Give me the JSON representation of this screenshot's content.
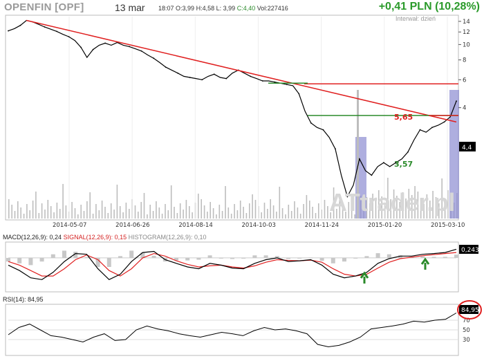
{
  "header": {
    "ticker": "OPENFIN [OPF]",
    "date": "13 mar",
    "time": "18:07",
    "open": "O:3,99",
    "high": "H:4,58",
    "low": "L: 3,99",
    "close": "C:4,40",
    "volume": "Vol:227416",
    "change": "+0,41 PLN (10,28%)",
    "interval": "Interwał: dzień"
  },
  "watermark": "ATtrader.pl",
  "colors": {
    "trendline": "#e02020",
    "support_line": "#2a8a2a",
    "price": "#000000",
    "volume": "#bdbdbd",
    "highlight": "#8c8cd2",
    "macd": "#000000",
    "signal": "#e02020",
    "up_arrow": "#2a8a2a"
  },
  "chart_data": [
    {
      "type": "line",
      "panel": "price",
      "x_ticks": [
        "2014-05-07",
        "2014-06-26",
        "2014-08-14",
        "2014-10-03",
        "2014-11-24",
        "2015-01-20",
        "2015-03-10"
      ],
      "y_ticks": [
        14,
        12,
        10,
        8,
        6,
        4
      ],
      "ylim": [
        0.8,
        15
      ],
      "scale": "log",
      "series": [
        {
          "values": [
            12.2,
            12.6,
            13.2,
            14.2,
            13.9,
            13.4,
            12.9,
            12.5,
            12.1,
            11.6,
            11.2,
            10.6,
            9.6,
            8.3,
            9.3,
            9.9,
            10.2,
            9.9,
            10.3,
            9.9,
            9.7,
            9.4,
            9.1,
            8.6,
            8.2,
            7.7,
            7.2,
            6.9,
            6.6,
            6.3,
            6.2,
            6.1,
            6.0,
            6.3,
            6.5,
            6.2,
            6.1,
            6.6,
            6.9,
            6.6,
            6.3,
            6.1,
            5.9,
            5.9,
            5.8,
            5.7,
            5.6,
            5.5,
            4.9,
            3.8,
            3.2,
            3.0,
            2.9,
            2.6,
            2.2,
            1.5,
            1.1,
            1.3,
            1.9,
            1.6,
            1.5,
            1.7,
            1.8,
            1.7,
            1.8,
            1.9,
            2.1,
            2.5,
            2.9,
            2.8,
            3.0,
            3.1,
            3.25,
            3.5,
            4.4
          ]
        }
      ],
      "annotations": [
        {
          "label": "5,65",
          "value": 5.65,
          "color": "#e02020"
        },
        {
          "label": "3,57",
          "value": 3.57,
          "color": "#2a8a2a"
        }
      ],
      "last_price_label": "4,4"
    },
    {
      "type": "line",
      "panel": "macd",
      "label": "MACD(12,26,9): 0,24",
      "signal_label": "SIGNAL(12,26,9): 0,15",
      "histogram_label": "HISTOGRAM(12,26,9): 0,10",
      "last_value_label": "0,243",
      "ylim": [
        -0.9,
        0.4
      ],
      "series": [
        {
          "name": "MACD",
          "values": [
            -0.2,
            -0.35,
            -0.55,
            -0.6,
            -0.4,
            -0.1,
            0.12,
            0.1,
            -0.3,
            -0.6,
            -0.45,
            -0.1,
            0.15,
            0.18,
            -0.05,
            -0.15,
            -0.25,
            -0.3,
            -0.15,
            -0.2,
            -0.28,
            -0.3,
            -0.15,
            -0.05,
            0.0,
            -0.1,
            -0.08,
            -0.05,
            -0.2,
            -0.45,
            -0.55,
            -0.5,
            -0.4,
            -0.15,
            -0.02,
            0.05,
            0.05,
            0.1,
            0.12,
            0.15,
            0.24
          ]
        },
        {
          "name": "SIGNAL",
          "values": [
            -0.1,
            -0.2,
            -0.35,
            -0.5,
            -0.5,
            -0.3,
            -0.05,
            0.08,
            -0.05,
            -0.35,
            -0.5,
            -0.3,
            0.0,
            0.12,
            0.05,
            -0.08,
            -0.18,
            -0.25,
            -0.22,
            -0.2,
            -0.25,
            -0.28,
            -0.22,
            -0.12,
            -0.05,
            -0.07,
            -0.08,
            -0.06,
            -0.12,
            -0.3,
            -0.45,
            -0.5,
            -0.45,
            -0.28,
            -0.12,
            -0.02,
            0.02,
            0.06,
            0.09,
            0.12,
            0.15
          ]
        }
      ]
    },
    {
      "type": "line",
      "panel": "rsi",
      "label": "RSI(14): 84,95",
      "last_value_label": "84,95",
      "y_ticks": [
        70,
        50,
        30
      ],
      "ylim": [
        0,
        100
      ],
      "series": [
        {
          "values": [
            40,
            55,
            62,
            50,
            38,
            35,
            30,
            25,
            35,
            42,
            28,
            30,
            50,
            58,
            52,
            48,
            42,
            38,
            35,
            40,
            45,
            42,
            38,
            48,
            55,
            50,
            52,
            48,
            42,
            20,
            15,
            18,
            25,
            35,
            52,
            55,
            58,
            62,
            68,
            66,
            70,
            72,
            85
          ]
        }
      ]
    }
  ]
}
